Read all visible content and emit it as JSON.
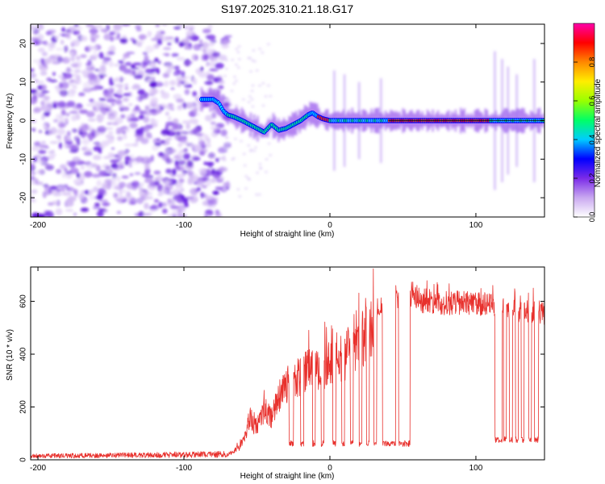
{
  "title": "S197.2025.310.21.18.G17",
  "chart_data": [
    {
      "type": "heatmap",
      "title": "S197.2025.310.21.18.G17",
      "xlabel": "Height of straight line (km)",
      "ylabel": "Frequency (Hz)",
      "xlim": [
        -205,
        147
      ],
      "ylim": [
        -25,
        25
      ],
      "x_ticks": [
        -200,
        -100,
        0,
        100
      ],
      "y_ticks": [
        -20,
        -10,
        0,
        10,
        20
      ],
      "noise_region_x": [
        -205,
        -73
      ],
      "ridge": {
        "x": [
          -88,
          -80,
          -76,
          -73,
          -70,
          -66,
          -60,
          -55,
          -50,
          -45,
          -40,
          -35,
          -30,
          -25,
          -20,
          -15,
          -12,
          -8,
          -5,
          0,
          10,
          20,
          40,
          60,
          80,
          100,
          120,
          140,
          147
        ],
        "y": [
          5.5,
          5.5,
          4.5,
          2.5,
          1.5,
          1.0,
          0.0,
          -1.0,
          -2.0,
          -3.0,
          -1.0,
          -2.5,
          -2.0,
          -1.0,
          0.0,
          1.5,
          2.0,
          1.0,
          0.5,
          0.0,
          0.0,
          0.0,
          0.0,
          0.0,
          0.0,
          0.0,
          0.0,
          0.0,
          0.0
        ]
      },
      "colorbar": {
        "label": "Normalized spectral amplitude",
        "ticks": [
          "0.0",
          "0.2",
          "0.4",
          "0.6",
          "0.8"
        ],
        "colors": [
          "#ffffff",
          "#c9a8f0",
          "#7b2be8",
          "#0000ff",
          "#00ccff",
          "#00ff66",
          "#99ff00",
          "#ffee00",
          "#ff8800",
          "#ff0000",
          "#ff00aa"
        ]
      }
    },
    {
      "type": "line",
      "xlabel": "Height of straight line (km)",
      "ylabel": "SNR (10 * v/v)",
      "xlim": [
        -205,
        147
      ],
      "ylim": [
        0,
        730
      ],
      "x_ticks": [
        -200,
        -100,
        0,
        100
      ],
      "y_ticks": [
        0,
        200,
        400,
        600
      ],
      "color": "#e8302c",
      "envelope": {
        "x": [
          -205,
          -70,
          -62,
          -58,
          -55,
          -50,
          -45,
          -40,
          -35,
          -30,
          -28,
          -25,
          -20,
          -15,
          -10,
          -5,
          0,
          5,
          10,
          15,
          20,
          25,
          30,
          35,
          40,
          50,
          55,
          58,
          62,
          80,
          100,
          110,
          115,
          120,
          125,
          130,
          135,
          140,
          145,
          147
        ],
        "y": [
          15,
          22,
          60,
          110,
          180,
          160,
          240,
          200,
          310,
          330,
          420,
          380,
          400,
          430,
          450,
          420,
          470,
          500,
          510,
          540,
          560,
          590,
          610,
          620,
          640,
          660,
          670,
          680,
          650,
          640,
          640,
          630,
          620,
          610,
          610,
          600,
          600,
          610,
          600,
          590
        ]
      },
      "dropouts": [
        [
          -28,
          -25
        ],
        [
          -20,
          -18
        ],
        [
          -12,
          -10
        ],
        [
          -6,
          -4
        ],
        [
          2,
          4
        ],
        [
          8,
          10
        ],
        [
          14,
          16
        ],
        [
          20,
          22
        ],
        [
          25,
          27
        ],
        [
          30,
          32
        ],
        [
          36,
          45
        ],
        [
          47,
          55
        ],
        [
          113,
          118
        ],
        [
          119,
          121
        ],
        [
          123,
          125
        ],
        [
          127,
          129
        ],
        [
          131,
          133
        ],
        [
          136,
          138
        ],
        [
          140,
          143
        ]
      ],
      "dropout_level": [
        50,
        90
      ]
    }
  ]
}
